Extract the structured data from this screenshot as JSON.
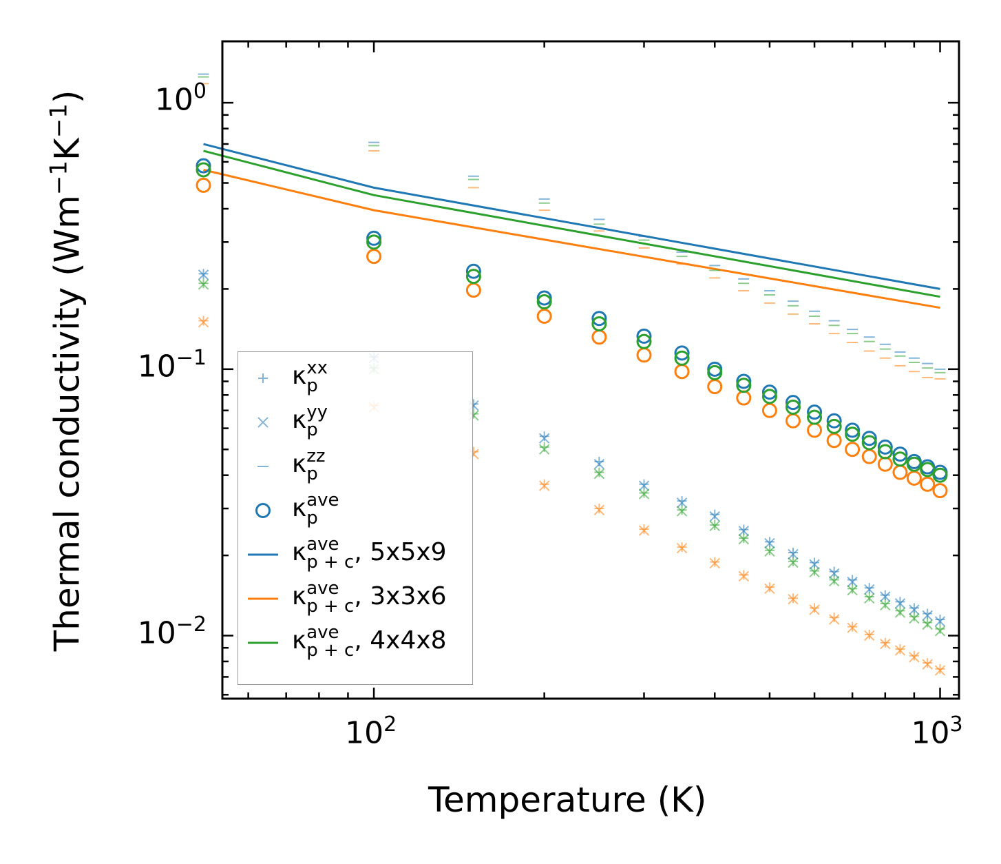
{
  "chart_data": {
    "type": "scatter",
    "xscale": "log",
    "yscale": "log",
    "xlabel": "Temperature (K)",
    "ylabel": "Thermal conductivity (Wm",
    "ylabel_parts": [
      "Thermal conductivity (Wm",
      "−1",
      "K",
      "−1",
      ")"
    ],
    "xlim": [
      54,
      1080
    ],
    "ylim": [
      0.0058,
      1.7
    ],
    "xticks": [
      {
        "value": 100,
        "base": "10",
        "exp": "2"
      },
      {
        "value": 1000,
        "base": "10",
        "exp": "3"
      }
    ],
    "yticks": [
      {
        "value": 1,
        "base": "10",
        "exp": "0"
      },
      {
        "value": 0.1,
        "base": "10",
        "exp": "−1"
      },
      {
        "value": 0.01,
        "base": "10",
        "exp": "−2"
      }
    ],
    "temperatures": [
      50,
      100,
      150,
      200,
      250,
      300,
      350,
      400,
      450,
      500,
      550,
      600,
      650,
      700,
      750,
      800,
      850,
      900,
      950,
      1000
    ],
    "colors": {
      "5x5x9": "#1f77b4",
      "3x3x6": "#ff7f0e",
      "4x4x8": "#2ca02c"
    },
    "series": [
      {
        "name": "κp^xx 5x5x9",
        "marker": "plus",
        "color": "#1f77b4",
        "values": [
          0.228,
          0.111,
          0.074,
          0.056,
          0.045,
          0.037,
          0.032,
          0.0285,
          0.025,
          0.0225,
          0.0205,
          0.0188,
          0.0174,
          0.0162,
          0.0151,
          0.0142,
          0.0134,
          0.0127,
          0.0121,
          0.0115
        ]
      },
      {
        "name": "κp^yy 5x5x9",
        "marker": "x",
        "color": "#1f77b4",
        "values": [
          0.226,
          0.11,
          0.073,
          0.055,
          0.044,
          0.0365,
          0.0315,
          0.028,
          0.0247,
          0.0222,
          0.0202,
          0.0185,
          0.0171,
          0.0159,
          0.0149,
          0.014,
          0.0132,
          0.0125,
          0.0119,
          0.0113
        ]
      },
      {
        "name": "κp^zz 5x5x9",
        "marker": "dash",
        "color": "#1f77b4",
        "values": [
          1.28,
          0.71,
          0.53,
          0.435,
          0.365,
          0.315,
          0.275,
          0.245,
          0.218,
          0.197,
          0.18,
          0.165,
          0.152,
          0.141,
          0.132,
          0.124,
          0.116,
          0.11,
          0.105,
          0.1
        ]
      },
      {
        "name": "κp^ave 5x5x9",
        "marker": "circle",
        "color": "#1f77b4",
        "values": [
          0.58,
          0.31,
          0.233,
          0.185,
          0.155,
          0.133,
          0.115,
          0.1,
          0.09,
          0.082,
          0.075,
          0.069,
          0.064,
          0.059,
          0.055,
          0.051,
          0.048,
          0.045,
          0.043,
          0.041
        ]
      },
      {
        "name": "κp^xx 3x3x6",
        "marker": "plus",
        "color": "#ff7f0e",
        "values": [
          0.152,
          0.073,
          0.049,
          0.037,
          0.03,
          0.0251,
          0.0215,
          0.0189,
          0.0169,
          0.0152,
          0.0138,
          0.0127,
          0.0117,
          0.0108,
          0.0101,
          0.0094,
          0.0089,
          0.0084,
          0.0079,
          0.0075
        ]
      },
      {
        "name": "κp^yy 3x3x6",
        "marker": "x",
        "color": "#ff7f0e",
        "values": [
          0.15,
          0.072,
          0.048,
          0.0365,
          0.0296,
          0.0248,
          0.0213,
          0.0187,
          0.0167,
          0.015,
          0.0137,
          0.0125,
          0.0115,
          0.0107,
          0.01,
          0.0093,
          0.0088,
          0.0083,
          0.0078,
          0.0074
        ]
      },
      {
        "name": "κp^zz 3x3x6",
        "marker": "dash",
        "color": "#ff7f0e",
        "values": [
          1.18,
          0.66,
          0.48,
          0.395,
          0.33,
          0.285,
          0.248,
          0.22,
          0.197,
          0.177,
          0.161,
          0.148,
          0.136,
          0.126,
          0.117,
          0.11,
          0.103,
          0.098,
          0.093,
          0.092
        ]
      },
      {
        "name": "κp^ave 3x3x6",
        "marker": "circle",
        "color": "#ff7f0e",
        "values": [
          0.49,
          0.265,
          0.198,
          0.158,
          0.132,
          0.113,
          0.098,
          0.086,
          0.078,
          0.07,
          0.064,
          0.059,
          0.054,
          0.05,
          0.047,
          0.044,
          0.041,
          0.039,
          0.037,
          0.035
        ]
      },
      {
        "name": "κp^xx 4x4x8",
        "marker": "plus",
        "color": "#2ca02c",
        "values": [
          0.21,
          0.101,
          0.068,
          0.051,
          0.041,
          0.0343,
          0.0296,
          0.026,
          0.0232,
          0.0209,
          0.019,
          0.0175,
          0.0162,
          0.015,
          0.014,
          0.0132,
          0.0124,
          0.0118,
          0.0112,
          0.0106
        ]
      },
      {
        "name": "κp^yy 4x4x8",
        "marker": "x",
        "color": "#2ca02c",
        "values": [
          0.208,
          0.1,
          0.067,
          0.05,
          0.0405,
          0.034,
          0.0293,
          0.0258,
          0.023,
          0.0207,
          0.0188,
          0.0173,
          0.016,
          0.0148,
          0.0138,
          0.013,
          0.0122,
          0.0116,
          0.011,
          0.0104
        ]
      },
      {
        "name": "κp^zz 4x4x8",
        "marker": "dash",
        "color": "#2ca02c",
        "values": [
          1.25,
          0.69,
          0.515,
          0.42,
          0.35,
          0.305,
          0.265,
          0.235,
          0.21,
          0.19,
          0.173,
          0.158,
          0.146,
          0.136,
          0.127,
          0.119,
          0.112,
          0.106,
          0.101,
          0.097
        ]
      },
      {
        "name": "κp^ave 4x4x8",
        "marker": "circle",
        "color": "#2ca02c",
        "values": [
          0.56,
          0.3,
          0.223,
          0.179,
          0.148,
          0.127,
          0.11,
          0.097,
          0.087,
          0.079,
          0.072,
          0.066,
          0.061,
          0.057,
          0.053,
          0.049,
          0.046,
          0.044,
          0.042,
          0.04
        ]
      },
      {
        "name": "κp+c^ave, 5x5x9",
        "marker": "line",
        "color": "#1f77b4",
        "x": [
          50,
          100,
          1000
        ],
        "values": [
          0.7,
          0.48,
          0.2
        ]
      },
      {
        "name": "κp+c^ave, 3x3x6",
        "marker": "line",
        "color": "#ff7f0e",
        "x": [
          50,
          100,
          1000
        ],
        "values": [
          0.56,
          0.395,
          0.17
        ]
      },
      {
        "name": "κp+c^ave, 4x4x8",
        "marker": "line",
        "color": "#2ca02c",
        "x": [
          50,
          100,
          1000
        ],
        "values": [
          0.66,
          0.45,
          0.187
        ]
      }
    ],
    "legend": {
      "placement": "lower-left",
      "entries": [
        {
          "base": "κ",
          "sup": "xx",
          "sub": "p",
          "suffix": "",
          "marker": "plus",
          "color": "#1f77b4"
        },
        {
          "base": "κ",
          "sup": "yy",
          "sub": "p",
          "suffix": "",
          "marker": "x",
          "color": "#1f77b4"
        },
        {
          "base": "κ",
          "sup": "zz",
          "sub": "p",
          "suffix": "",
          "marker": "dash",
          "color": "#1f77b4"
        },
        {
          "base": "κ",
          "sup": "ave",
          "sub": "p",
          "suffix": "",
          "marker": "circle",
          "color": "#1f77b4"
        },
        {
          "base": "κ",
          "sup": "ave",
          "sub": "p + c",
          "suffix": ", 5x5x9",
          "marker": "line",
          "color": "#1f77b4"
        },
        {
          "base": "κ",
          "sup": "ave",
          "sub": "p + c",
          "suffix": ", 3x3x6",
          "marker": "line",
          "color": "#ff7f0e"
        },
        {
          "base": "κ",
          "sup": "ave",
          "sub": "p + c",
          "suffix": ", 4x4x8",
          "marker": "line",
          "color": "#2ca02c"
        }
      ]
    }
  }
}
